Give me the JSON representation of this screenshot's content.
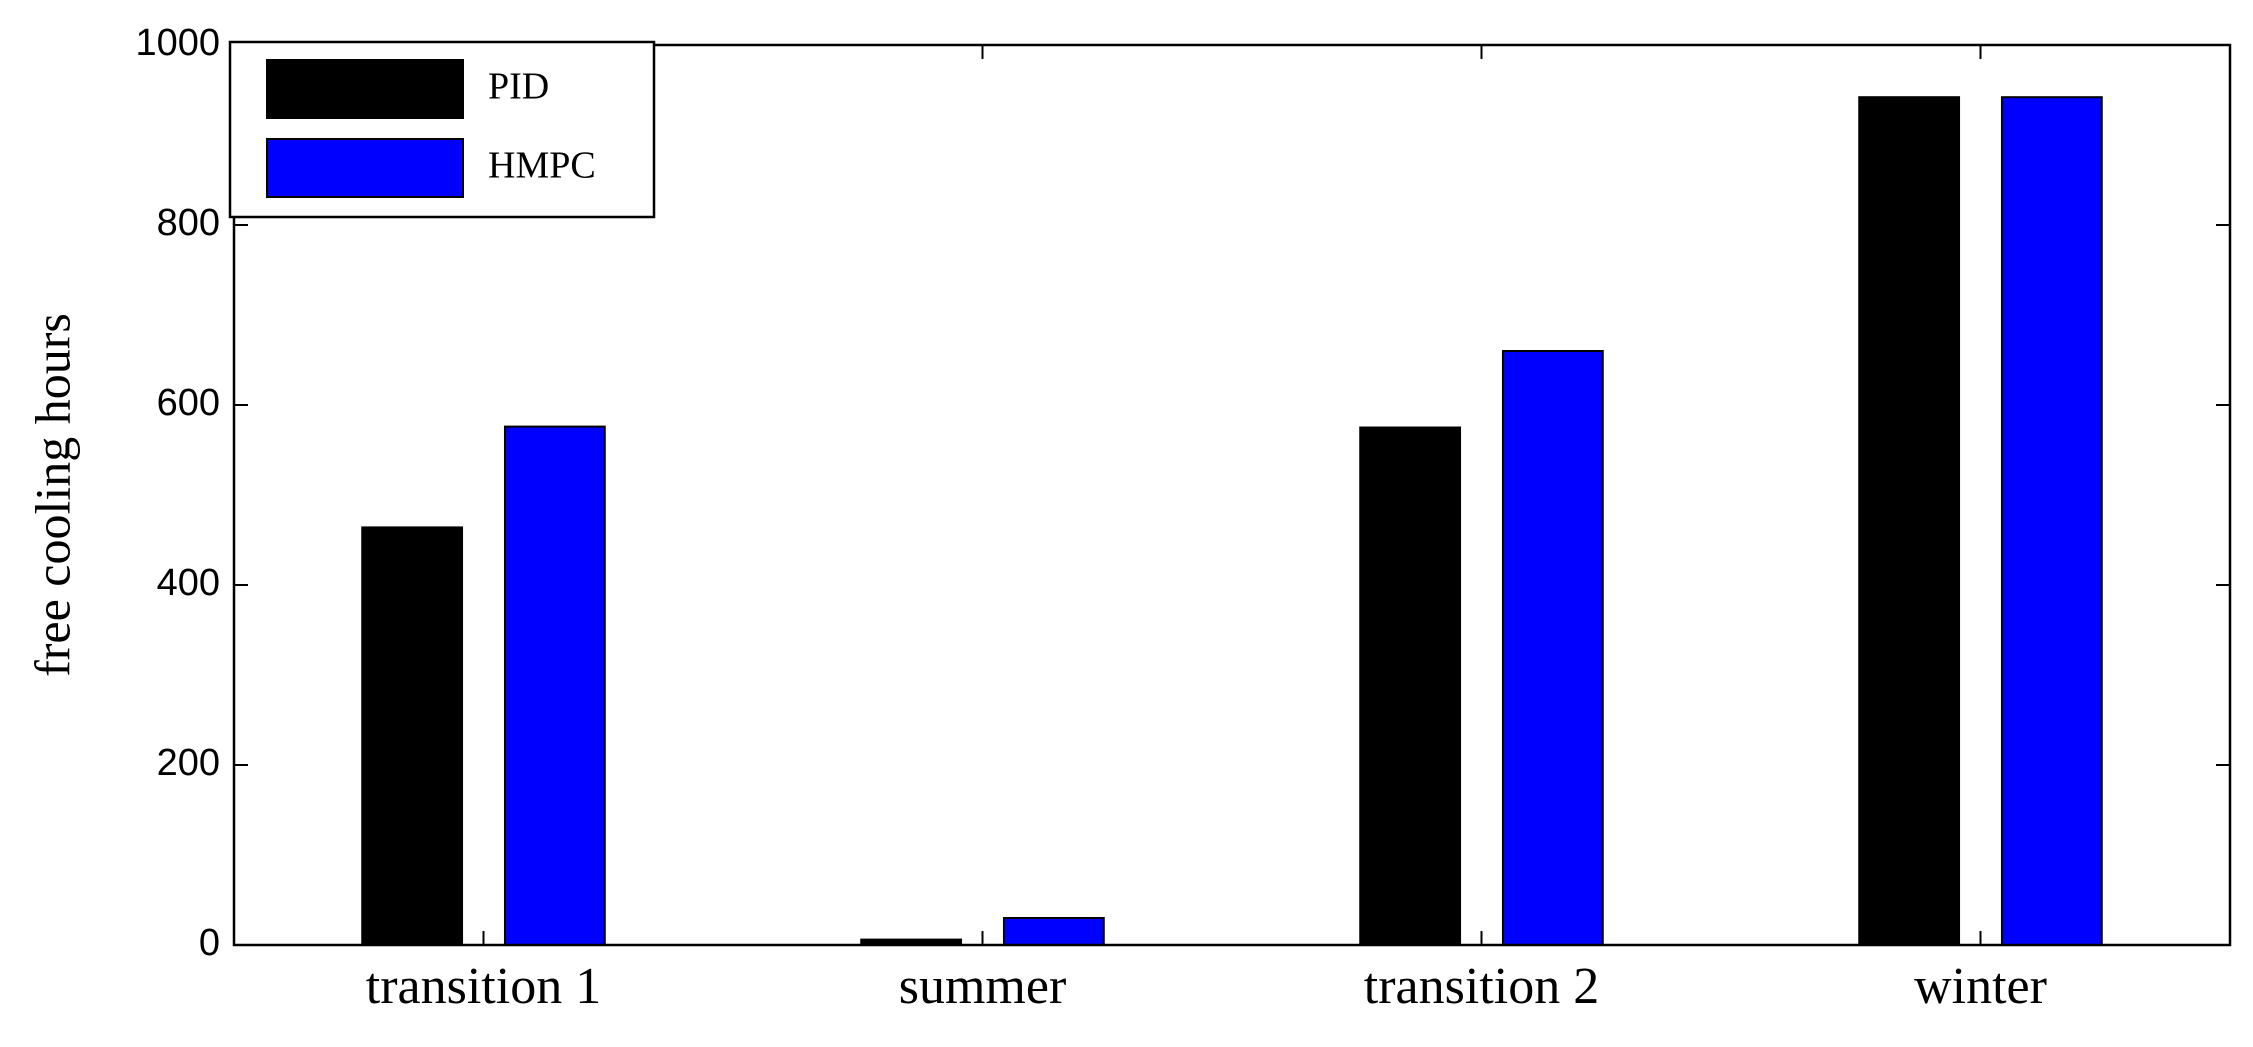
{
  "chart_data": {
    "type": "bar",
    "y_label": "free cooling hours",
    "categories": [
      "transition 1",
      "summer",
      "transition 2",
      "winter"
    ],
    "series": [
      {
        "name": "PID",
        "color": "#000000",
        "values": [
          464,
          6,
          575,
          942
        ]
      },
      {
        "name": "HMPC",
        "color": "#0000ff",
        "values": [
          576,
          30,
          660,
          942
        ]
      }
    ],
    "ylim": [
      0,
      1000
    ],
    "yticks": [
      0,
      200,
      400,
      600,
      800,
      1000
    ],
    "legend": "upper left"
  }
}
